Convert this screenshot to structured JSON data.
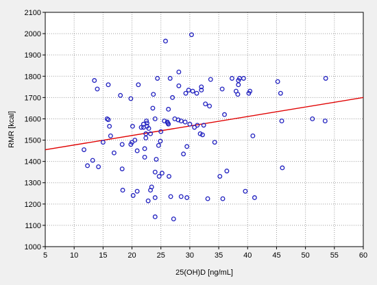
{
  "chart_data": {
    "type": "scatter",
    "xlabel": "25(OH)D [ng/mL]",
    "ylabel": "RMR [kcal]",
    "xlim": [
      5,
      60
    ],
    "ylim": [
      1000,
      2100
    ],
    "xticks": [
      "5",
      "10",
      "15",
      "20",
      "25",
      "30",
      "35",
      "40",
      "45",
      "50",
      "55",
      "60"
    ],
    "yticks": [
      "1000",
      "1100",
      "1200",
      "1300",
      "1400",
      "1500",
      "1600",
      "1700",
      "1800",
      "1900",
      "2000",
      "2100"
    ],
    "grid": true,
    "colors": {
      "points": "#1f1fbf",
      "fit_line": "#e00000"
    },
    "trend_line": {
      "x": [
        5,
        60
      ],
      "y": [
        1455,
        1700
      ]
    },
    "points": [
      [
        11.7,
        1455
      ],
      [
        12.3,
        1380
      ],
      [
        13.2,
        1405
      ],
      [
        13.5,
        1780
      ],
      [
        14.0,
        1740
      ],
      [
        14.2,
        1375
      ],
      [
        15.0,
        1490
      ],
      [
        15.7,
        1600
      ],
      [
        15.9,
        1596
      ],
      [
        15.9,
        1760
      ],
      [
        16.1,
        1565
      ],
      [
        16.3,
        1520
      ],
      [
        16.9,
        1440
      ],
      [
        18.0,
        1710
      ],
      [
        18.3,
        1480
      ],
      [
        18.3,
        1365
      ],
      [
        18.4,
        1265
      ],
      [
        19.8,
        1695
      ],
      [
        19.8,
        1480
      ],
      [
        20.0,
        1490
      ],
      [
        20.1,
        1565
      ],
      [
        20.2,
        1240
      ],
      [
        20.5,
        1500
      ],
      [
        20.9,
        1450
      ],
      [
        20.9,
        1260
      ],
      [
        21.1,
        1760
      ],
      [
        21.6,
        1560
      ],
      [
        22.0,
        1560
      ],
      [
        22.0,
        1575
      ],
      [
        22.2,
        1460
      ],
      [
        22.2,
        1420
      ],
      [
        22.4,
        1530
      ],
      [
        22.4,
        1510
      ],
      [
        22.5,
        1590
      ],
      [
        22.6,
        1565
      ],
      [
        22.6,
        1580
      ],
      [
        22.8,
        1215
      ],
      [
        22.9,
        1555
      ],
      [
        23.2,
        1530
      ],
      [
        23.2,
        1265
      ],
      [
        23.4,
        1280
      ],
      [
        23.6,
        1650
      ],
      [
        23.7,
        1715
      ],
      [
        24.0,
        1600
      ],
      [
        24.0,
        1230
      ],
      [
        24.0,
        1350
      ],
      [
        24.0,
        1140
      ],
      [
        24.2,
        1410
      ],
      [
        24.4,
        1790
      ],
      [
        24.6,
        1475
      ],
      [
        24.7,
        1330
      ],
      [
        24.9,
        1495
      ],
      [
        25.0,
        1540
      ],
      [
        25.2,
        1345
      ],
      [
        25.6,
        1590
      ],
      [
        25.8,
        1965
      ],
      [
        26.1,
        1585
      ],
      [
        26.2,
        1580
      ],
      [
        26.3,
        1575
      ],
      [
        26.3,
        1645
      ],
      [
        26.4,
        1330
      ],
      [
        26.6,
        1790
      ],
      [
        26.7,
        1235
      ],
      [
        27.0,
        1700
      ],
      [
        27.2,
        1130
      ],
      [
        27.4,
        1600
      ],
      [
        28.0,
        1595
      ],
      [
        28.1,
        1755
      ],
      [
        28.1,
        1820
      ],
      [
        28.5,
        1235
      ],
      [
        28.5,
        1590
      ],
      [
        28.9,
        1435
      ],
      [
        29.2,
        1585
      ],
      [
        29.3,
        1720
      ],
      [
        29.5,
        1470
      ],
      [
        29.5,
        1230
      ],
      [
        29.8,
        1735
      ],
      [
        30.0,
        1575
      ],
      [
        30.3,
        1995
      ],
      [
        30.5,
        1730
      ],
      [
        30.8,
        1560
      ],
      [
        31.2,
        1720
      ],
      [
        31.3,
        1570
      ],
      [
        31.8,
        1530
      ],
      [
        32.0,
        1735
      ],
      [
        32.0,
        1750
      ],
      [
        32.2,
        1525
      ],
      [
        32.4,
        1570
      ],
      [
        32.7,
        1670
      ],
      [
        33.1,
        1225
      ],
      [
        33.4,
        1660
      ],
      [
        33.6,
        1785
      ],
      [
        34.3,
        1490
      ],
      [
        35.2,
        1330
      ],
      [
        35.6,
        1740
      ],
      [
        35.7,
        1225
      ],
      [
        36.0,
        1620
      ],
      [
        36.4,
        1355
      ],
      [
        37.3,
        1790
      ],
      [
        38.0,
        1730
      ],
      [
        38.3,
        1715
      ],
      [
        38.4,
        1780
      ],
      [
        38.4,
        1760
      ],
      [
        38.6,
        1790
      ],
      [
        39.3,
        1790
      ],
      [
        39.6,
        1260
      ],
      [
        40.2,
        1720
      ],
      [
        40.4,
        1730
      ],
      [
        40.9,
        1520
      ],
      [
        41.2,
        1230
      ],
      [
        45.2,
        1775
      ],
      [
        45.7,
        1720
      ],
      [
        45.9,
        1590
      ],
      [
        46.0,
        1370
      ],
      [
        51.2,
        1600
      ],
      [
        53.4,
        1590
      ],
      [
        53.5,
        1790
      ]
    ]
  }
}
